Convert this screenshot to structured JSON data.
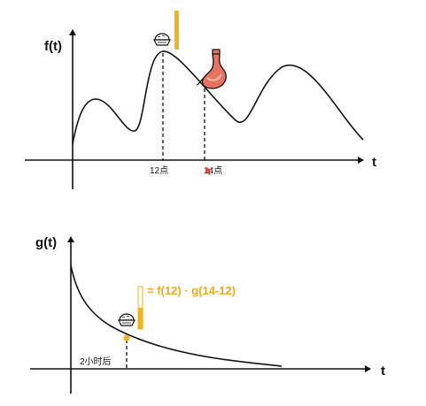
{
  "top_panel": {
    "y_axis_label": "f(t)",
    "x_axis_label": "t",
    "tick_12": "12点",
    "tick_14": "14点",
    "icons": [
      "rice-bowl-icon",
      "stomach-icon",
      "cursor-icon"
    ]
  },
  "bottom_panel": {
    "y_axis_label": "g(t)",
    "x_axis_label": "t",
    "tick_2h": "2小时后",
    "formula": "= f(12) · g(14-12)",
    "icons": [
      "rice-bowl-icon"
    ]
  },
  "colors": {
    "curve": "#111111",
    "accent": "#f2b21c",
    "formula": "#e8a91a",
    "stomach": "#e8735f",
    "cursor": "#e2463a"
  }
}
